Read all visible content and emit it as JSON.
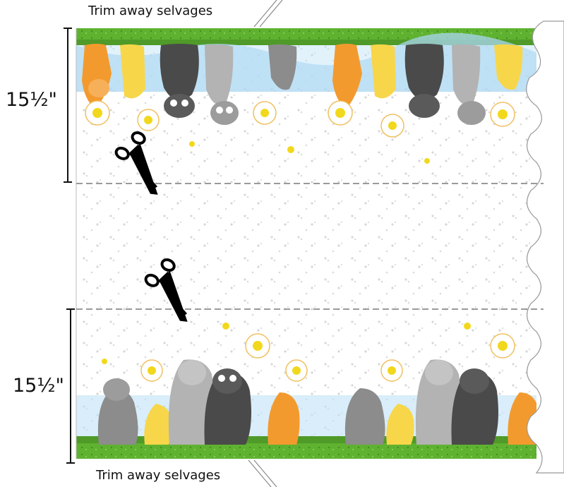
{
  "captions": {
    "top": "Trim away selvages",
    "bottom": "Trim away selvages"
  },
  "measurements": {
    "top": "15½\"",
    "bottom": "15½\""
  },
  "colors": {
    "selvage_green": "#5fb230",
    "sky_blue": "#a9d6f2",
    "orange_cat": "#f39a2e",
    "gray_cat": "#8c8c8c",
    "dark_cat": "#4a4a4a",
    "yellow_cat": "#f7d64a",
    "daisy_center": "#f2d81c",
    "cut_line": "#9a9a9a"
  },
  "icons": [
    "scissors-icon"
  ]
}
